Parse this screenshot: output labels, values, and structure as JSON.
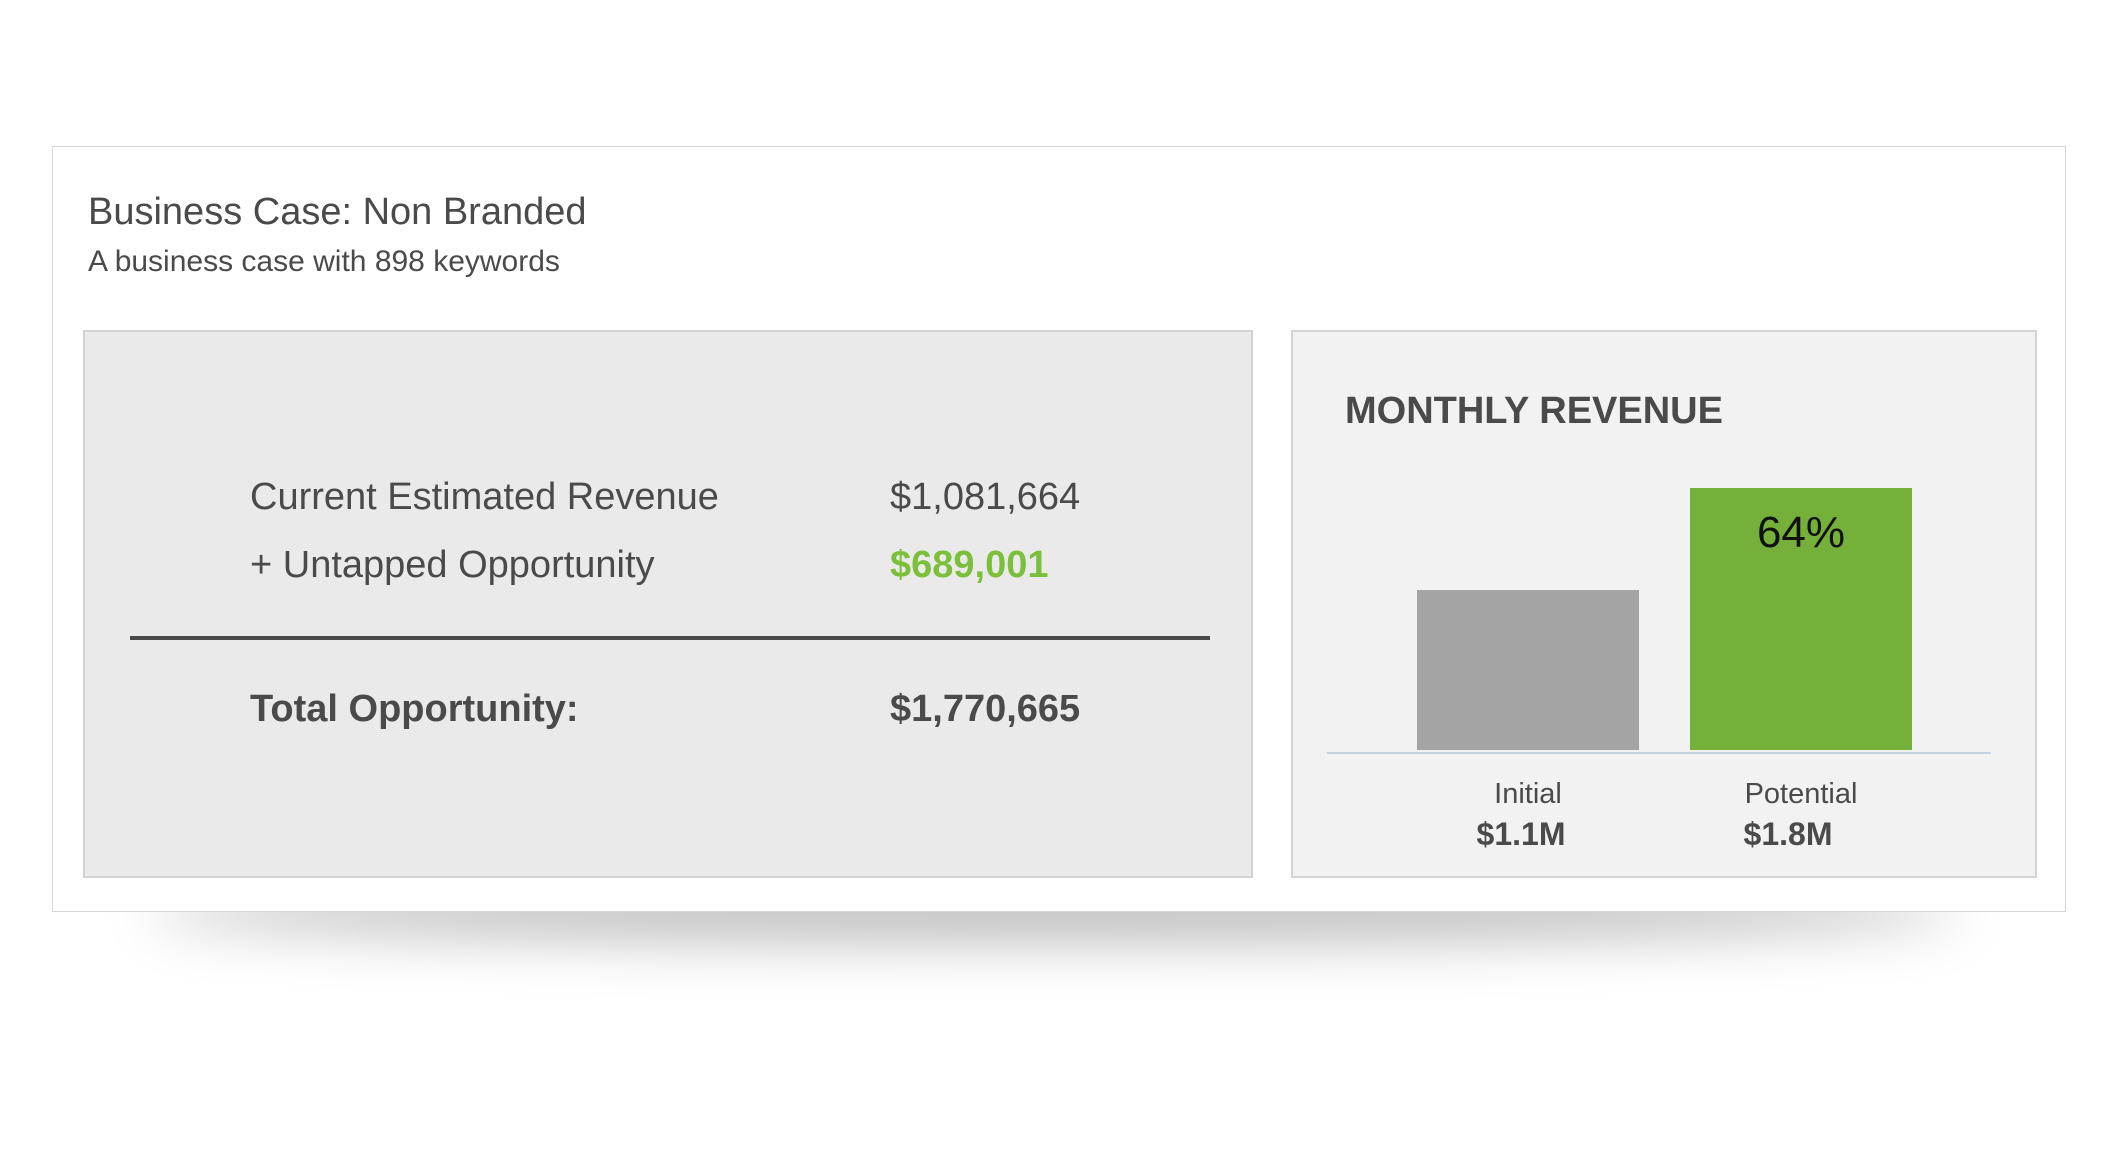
{
  "header": {
    "title": "Business Case: Non Branded",
    "subtitle": "A business case with 898 keywords"
  },
  "summary": {
    "rows": [
      {
        "label": "Current Estimated Revenue",
        "value": "$1,081,664"
      },
      {
        "label": "+ Untapped Opportunity",
        "value": "$689,001"
      }
    ],
    "total": {
      "label": "Total Opportunity:",
      "value": "$1,770,665"
    }
  },
  "colors": {
    "accent_green": "#74b03a",
    "text_green": "#7bbf3a",
    "bar_gray": "#a4a4a4",
    "text": "#4a4a4a"
  },
  "chart_data": {
    "type": "bar",
    "title": "MONTHLY REVENUE",
    "categories": [
      "Initial",
      "Potential"
    ],
    "values": [
      1.1,
      1.8
    ],
    "value_labels": [
      "$1.1M",
      "$1.8M"
    ],
    "bar_annotations": [
      "",
      "64%"
    ],
    "bar_colors": [
      "#a4a4a4",
      "#74b03a"
    ],
    "ylim": [
      0,
      1.8
    ],
    "grid": false
  }
}
